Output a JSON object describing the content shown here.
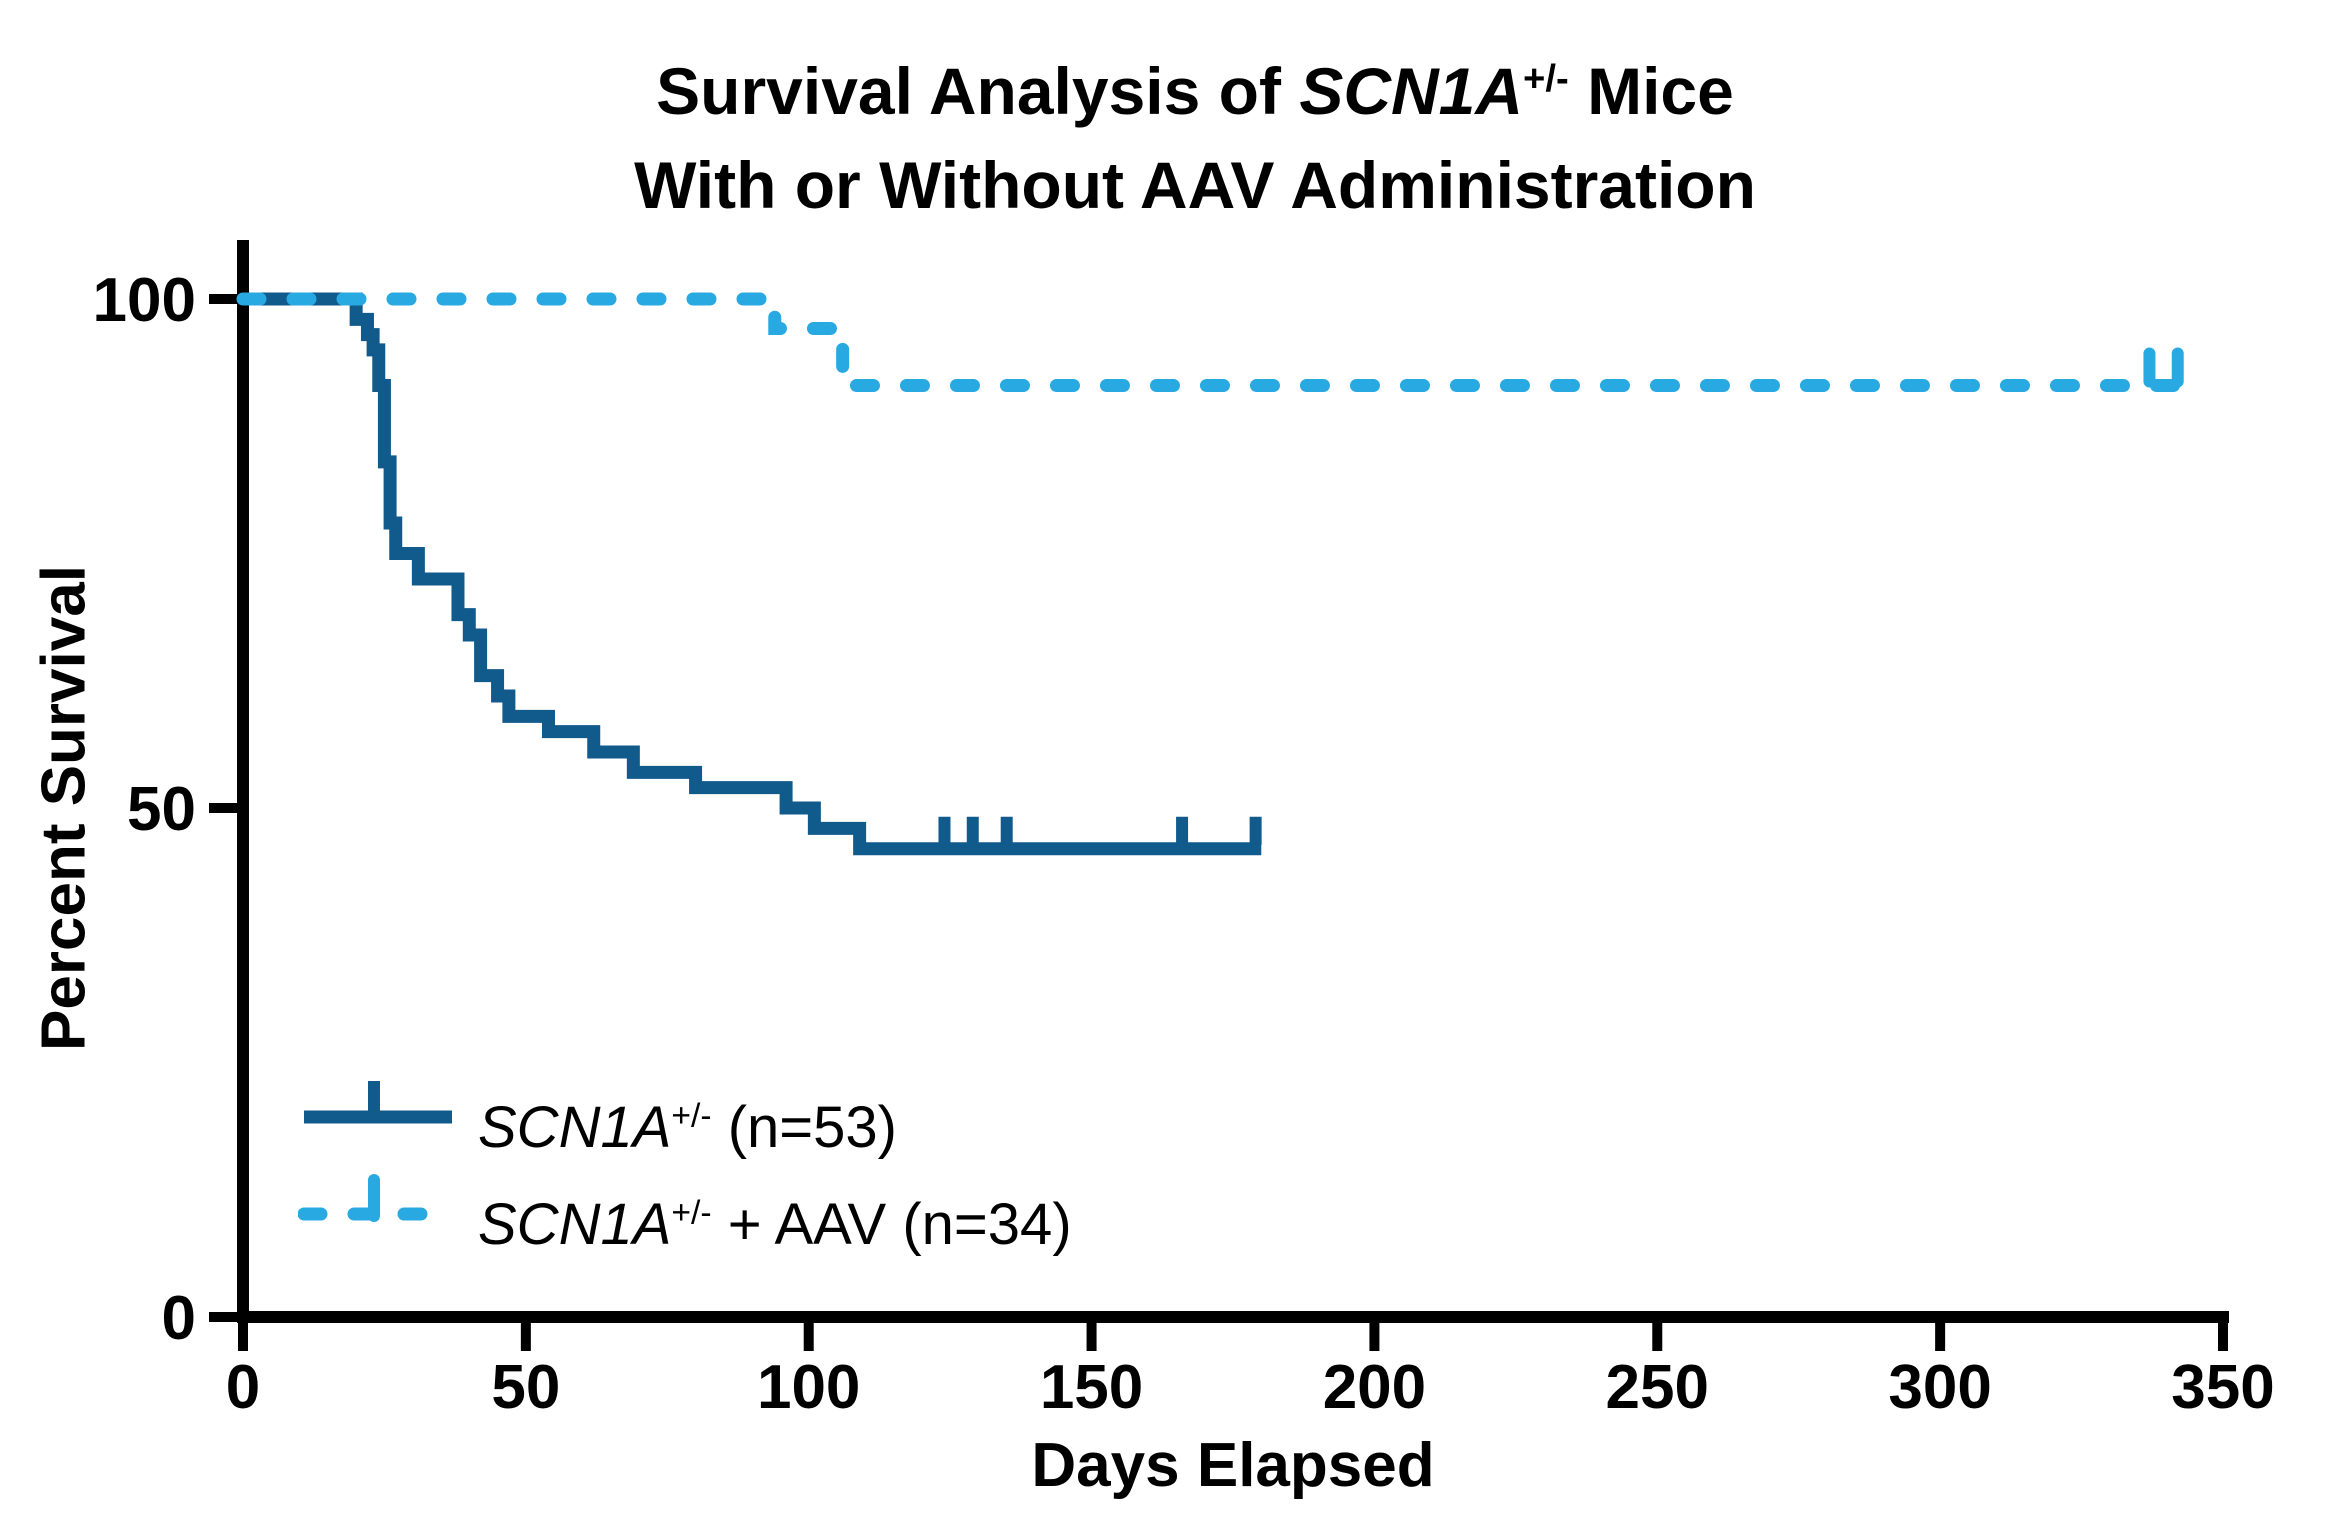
{
  "title": {
    "line1_pre": "Survival Analysis of ",
    "gene": "SCN1A",
    "sup": "+/-",
    "line1_post": " Mice",
    "line2": "With or Without AAV Administration"
  },
  "axes": {
    "x_label": "Days Elapsed",
    "y_label": "Percent Survival",
    "x_ticks": [
      0,
      50,
      100,
      150,
      200,
      250,
      300,
      350
    ],
    "y_ticks": [
      0,
      50,
      100
    ]
  },
  "legend": {
    "items": [
      {
        "gene": "SCN1A",
        "sup": "+/-",
        "rest": " (n=53)"
      },
      {
        "gene": "SCN1A",
        "sup": "+/-",
        "rest": " + AAV (n=34)"
      }
    ]
  },
  "chart_data": {
    "type": "line",
    "subtype": "kaplan_meier_step",
    "title": "Survival Analysis of SCN1A+/- Mice With or Without AAV Administration",
    "xlabel": "Days Elapsed",
    "ylabel": "Percent Survival",
    "xlim": [
      0,
      350
    ],
    "ylim": [
      0,
      100
    ],
    "grid": false,
    "legend_position": "inside-lower-left",
    "series": [
      {
        "name": "SCN1A+/- (n=53)",
        "color": "#105A8C",
        "line_style": "solid",
        "n": 53,
        "steps_day_percent": [
          [
            0,
            100
          ],
          [
            20,
            98
          ],
          [
            22,
            96.5
          ],
          [
            23,
            95
          ],
          [
            24,
            91.5
          ],
          [
            25,
            84
          ],
          [
            26,
            78
          ],
          [
            27,
            75
          ],
          [
            31,
            72.5
          ],
          [
            38,
            69
          ],
          [
            40,
            67
          ],
          [
            42,
            63
          ],
          [
            45,
            61
          ],
          [
            47,
            59
          ],
          [
            54,
            57.5
          ],
          [
            62,
            55.5
          ],
          [
            69,
            53.5
          ],
          [
            80,
            52
          ],
          [
            96,
            50
          ],
          [
            101,
            48
          ],
          [
            109,
            46
          ]
        ],
        "end_day": 180,
        "censor_marks_day_percent": [
          [
            124,
            46
          ],
          [
            129,
            46
          ],
          [
            135,
            46
          ],
          [
            166,
            46
          ],
          [
            179,
            46
          ]
        ]
      },
      {
        "name": "SCN1A+/- + AAV (n=34)",
        "color": "#29A9E1",
        "line_style": "dashed",
        "n": 34,
        "steps_day_percent": [
          [
            0,
            100
          ],
          [
            94,
            97.1
          ],
          [
            106,
            91.5
          ]
        ],
        "end_day": 342,
        "censor_marks_day_percent": [
          [
            337,
            91.5
          ],
          [
            342,
            91.5
          ]
        ]
      }
    ]
  }
}
